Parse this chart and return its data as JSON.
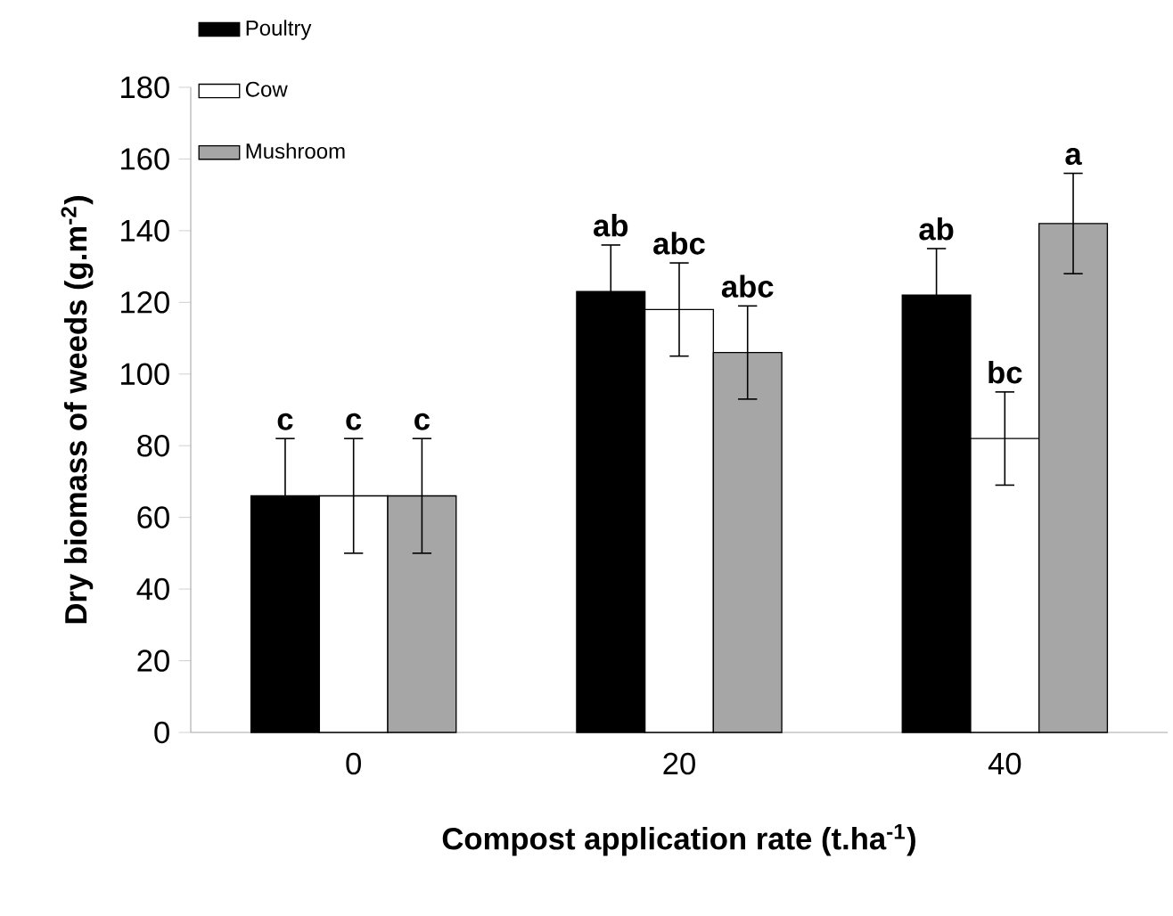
{
  "chart_data": {
    "type": "bar",
    "xlabel": "Compost application rate (t.ha$^{-1}$)",
    "ylabel": "Dry biomass of weeds (g.m$^{-2}$)",
    "categories": [
      "0",
      "20",
      "40"
    ],
    "series": [
      {
        "name": "Poultry",
        "color": "#000000",
        "values": [
          66,
          123,
          122
        ],
        "errors": [
          16,
          13,
          13
        ]
      },
      {
        "name": "Cow",
        "color": "#ffffff",
        "values": [
          66,
          118,
          82
        ],
        "errors": [
          16,
          13,
          13
        ]
      },
      {
        "name": "Mushroom",
        "color": "#a6a6a6",
        "values": [
          66,
          106,
          142
        ],
        "errors": [
          16,
          13,
          14
        ]
      }
    ],
    "ylim": [
      0,
      180
    ],
    "yticks": [
      0,
      20,
      40,
      60,
      80,
      100,
      120,
      140,
      160,
      180
    ],
    "annotations": [
      "c",
      "c",
      "c",
      "ab",
      "abc",
      "abc",
      "ab",
      "bc",
      "a"
    ],
    "grid": false,
    "legend": "top left"
  }
}
